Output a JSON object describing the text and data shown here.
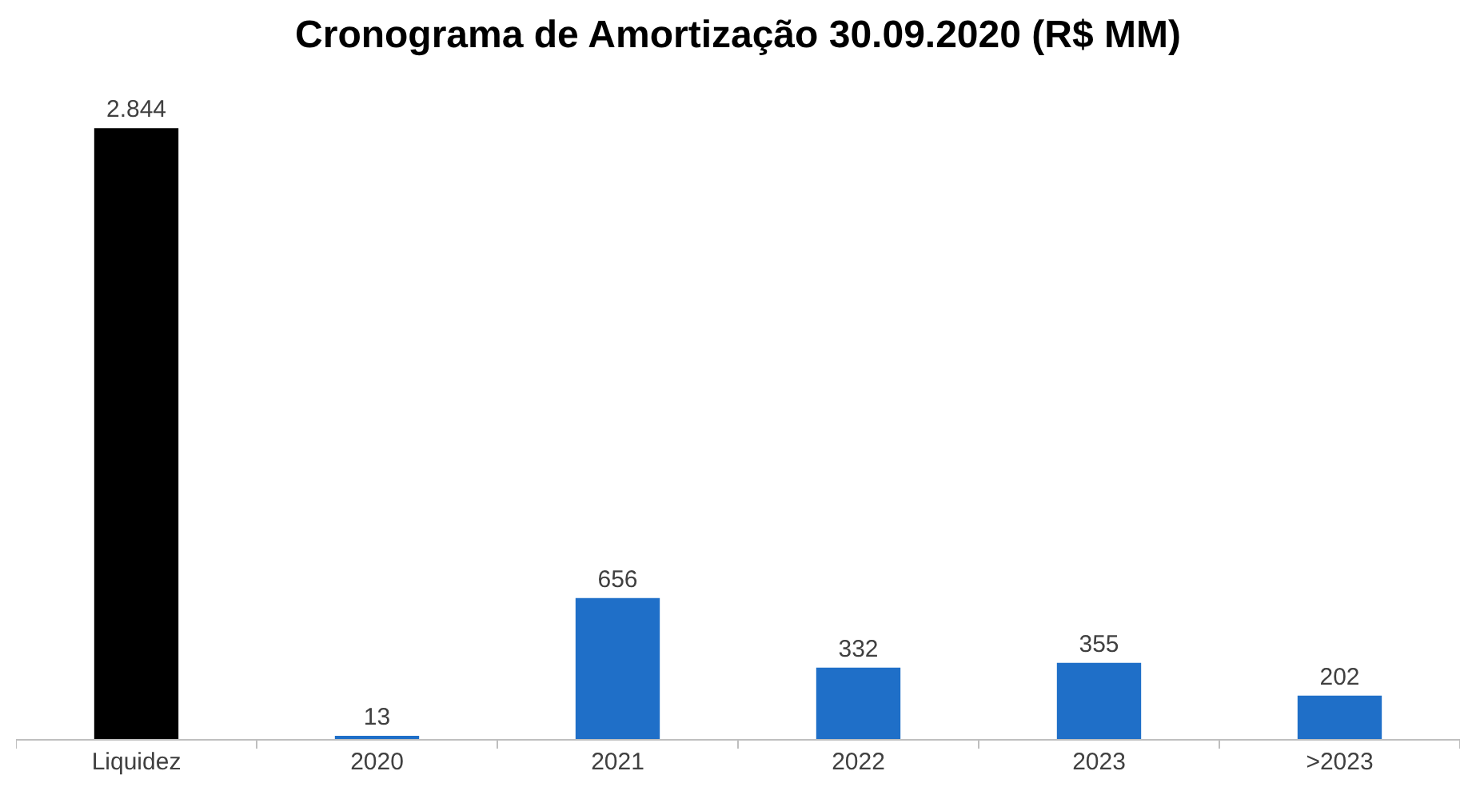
{
  "chart_data": {
    "type": "bar",
    "title": "Cronograma de Amortização 30.09.2020 (R$ MM)",
    "categories": [
      "Liquidez",
      "2020",
      "2021",
      "2022",
      "2023",
      ">2023"
    ],
    "values": [
      2844,
      13,
      656,
      332,
      355,
      202
    ],
    "colors": [
      "#000000",
      "#1f6fc8",
      "#1f6fc8",
      "#1f6fc8",
      "#1f6fc8",
      "#1f6fc8"
    ],
    "value_labels": [
      "2.844",
      "13",
      "656",
      "332",
      "355",
      "202"
    ],
    "legend": false
  }
}
